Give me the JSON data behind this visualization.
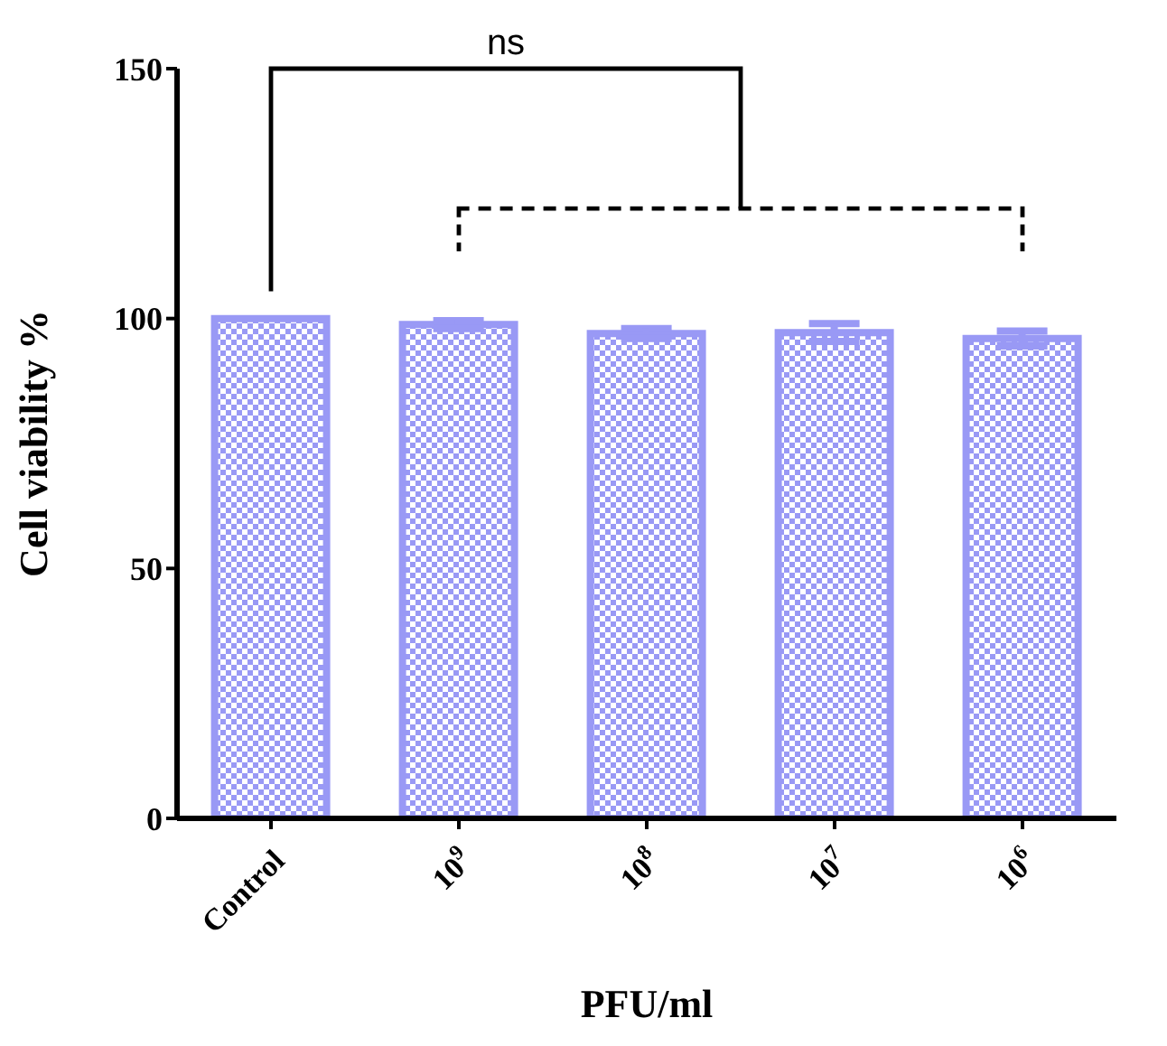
{
  "chart_data": {
    "type": "bar",
    "xlabel": "PFU/ml",
    "ylabel": "Cell viability %",
    "categories": [
      "Control",
      "10$^{9}$",
      "10$^{8}$",
      "10$^{7}$",
      "10$^{6}$"
    ],
    "values": [
      100,
      98.8,
      97,
      97.2,
      96
    ],
    "color": "#9999f5",
    "errors": [
      null,
      0.8,
      1,
      1.8,
      1.5
    ],
    "ylim": [
      0,
      150
    ],
    "yticks": [
      0,
      50,
      100,
      150
    ],
    "grid": false,
    "legend": false,
    "annotations": [
      "ns"
    ]
  }
}
